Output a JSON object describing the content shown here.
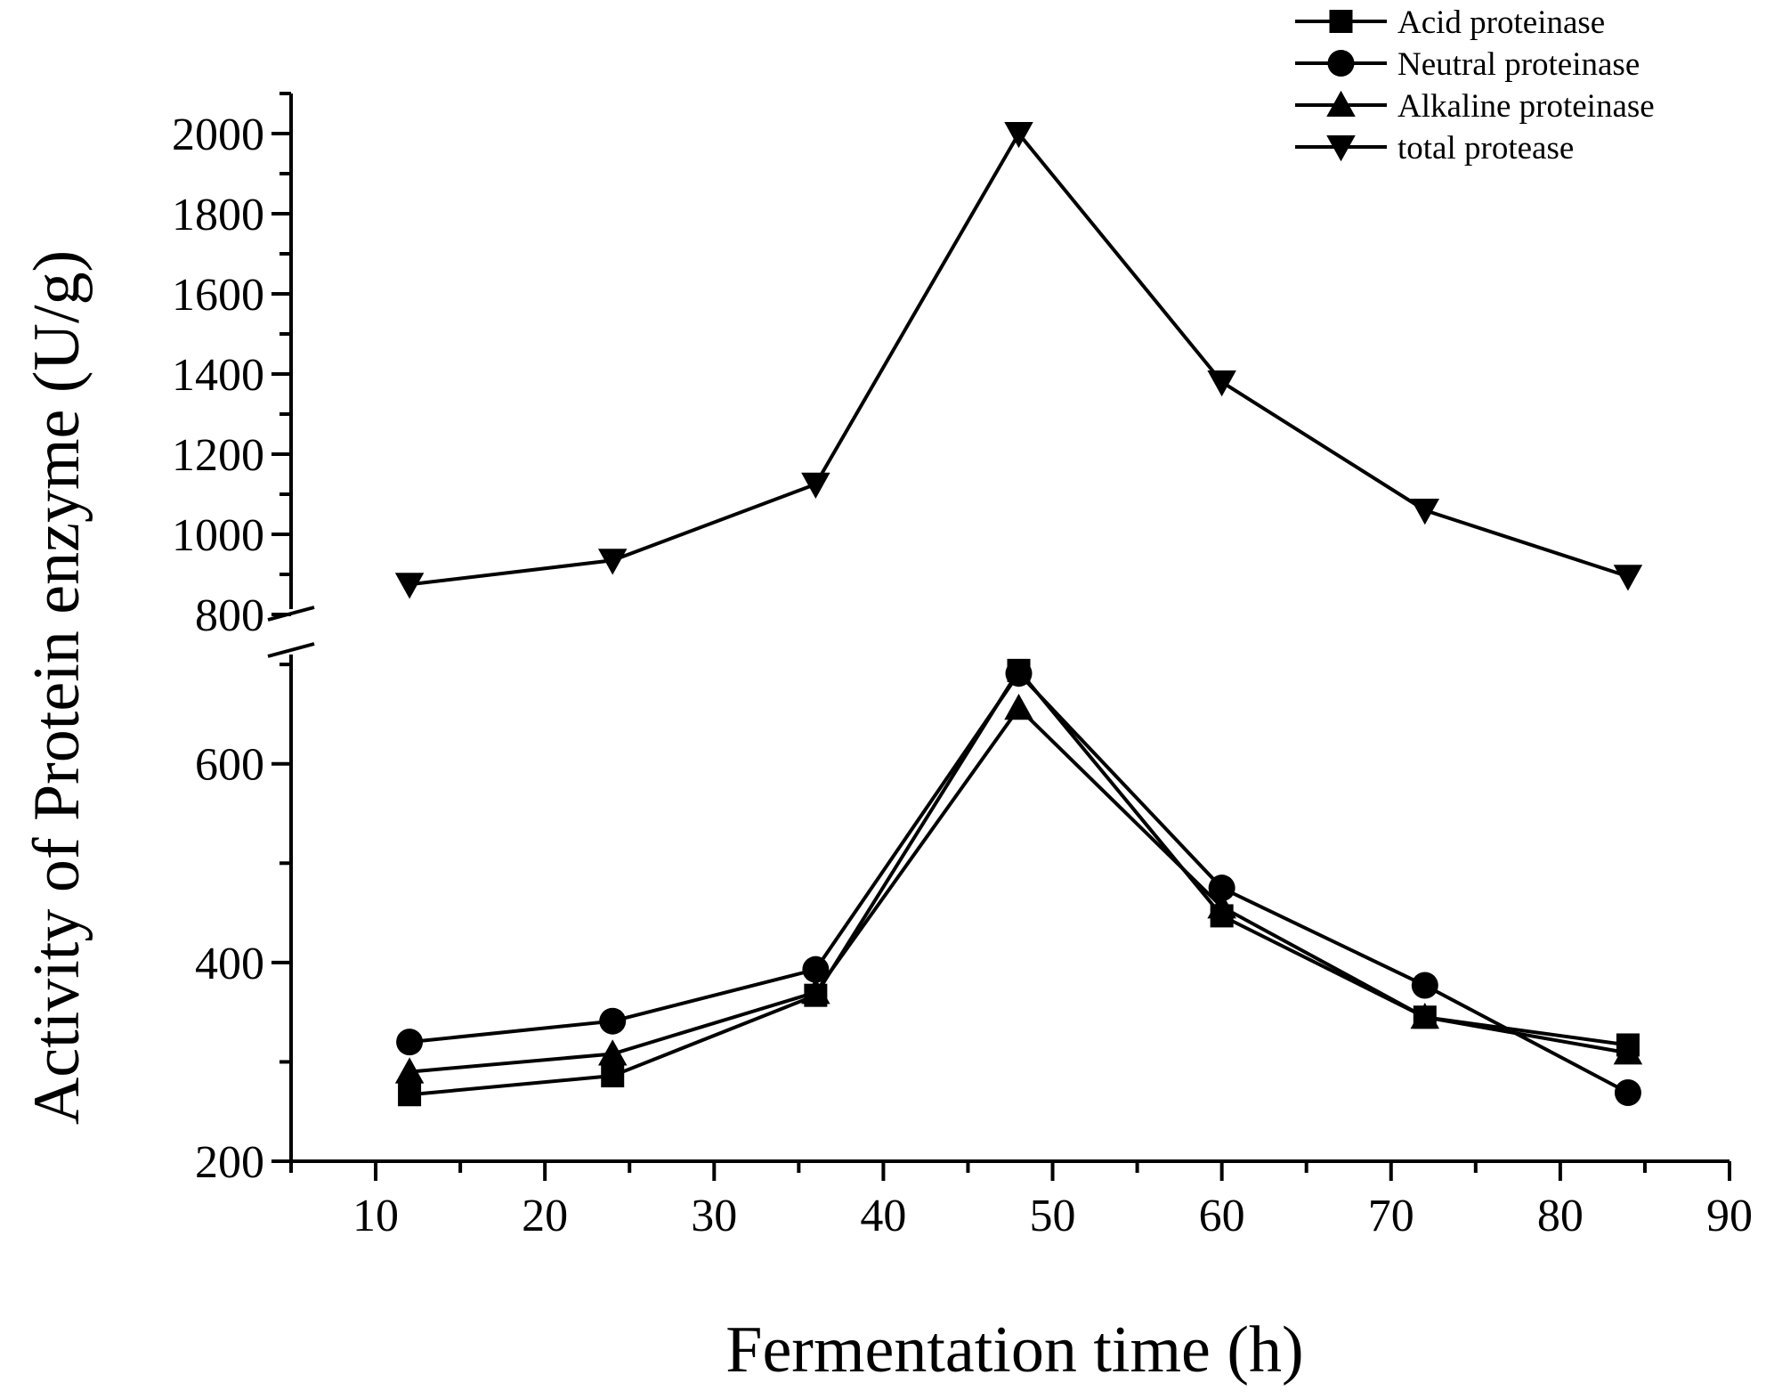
{
  "chart_data": {
    "type": "line",
    "xlabel": "Fermentation time (h)",
    "ylabel": "Activity of Protein enzyme (U/g)",
    "xlim": [
      5,
      90
    ],
    "x_ticks": [
      10,
      20,
      30,
      40,
      50,
      60,
      70,
      80,
      90
    ],
    "y_axis_broken": true,
    "ylim_lower": [
      200,
      710
    ],
    "ylim_upper": [
      800,
      2100
    ],
    "y_ticks_lower": [
      200,
      400,
      600
    ],
    "y_ticks_upper": [
      800,
      1000,
      1200,
      1400,
      1600,
      1800,
      2000
    ],
    "legend_position": "top-right",
    "x": [
      12,
      24,
      36,
      48,
      60,
      72,
      84
    ],
    "series": [
      {
        "name": "Acid proteinase",
        "marker": "square",
        "values": [
          267,
          286,
          367,
          694,
          447,
          345,
          317
        ]
      },
      {
        "name": "Neutral proteinase",
        "marker": "circle",
        "values": [
          320,
          341,
          393,
          691,
          475,
          377,
          269
        ]
      },
      {
        "name": "Alkaline proteinase",
        "marker": "triangle-up",
        "values": [
          290,
          308,
          370,
          656,
          456,
          345,
          309
        ]
      },
      {
        "name": "total protease",
        "marker": "triangle-down",
        "values": [
          875,
          935,
          1125,
          2000,
          1380,
          1060,
          895
        ]
      }
    ]
  }
}
